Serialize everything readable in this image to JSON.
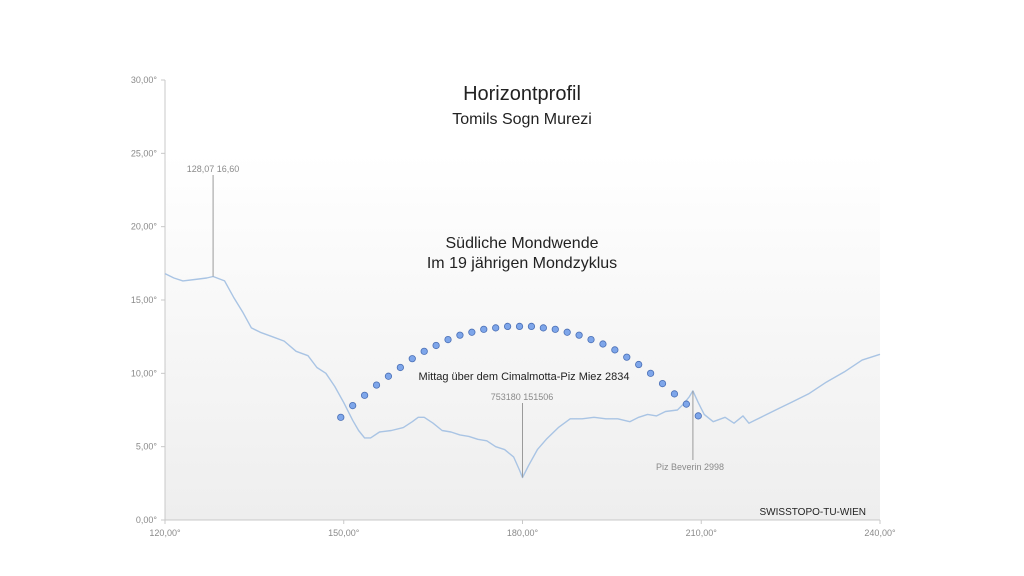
{
  "chart_data": {
    "type": "line",
    "title": "Horizontprofil",
    "subtitle": "Tomils Sogn Murezi",
    "xlim": [
      120,
      240
    ],
    "ylim": [
      0,
      30
    ],
    "x_ticks": [
      120,
      150,
      180,
      210,
      240
    ],
    "x_tick_labels": [
      "120,00°",
      "150,00°",
      "180,00°",
      "210,00°",
      "240,00°"
    ],
    "y_ticks": [
      0,
      5,
      10,
      15,
      20,
      25,
      30
    ],
    "y_tick_labels": [
      "0,00°",
      "5,00°",
      "10,00°",
      "15,00°",
      "20,00°",
      "25,00°",
      "30,00°"
    ],
    "grid": false,
    "colors": {
      "horizon": "#a9c4e4",
      "moon_fill": "#7ea6ea",
      "moon_stroke": "#4a6fb5",
      "leader": "#9a9a9a"
    },
    "series": [
      {
        "kind": "line",
        "x": [
          120,
          121.5,
          123,
          125,
          127,
          128.07,
          130,
          131.5,
          133,
          134.5,
          136,
          138,
          140,
          142,
          144,
          145.5,
          147,
          148.5,
          150,
          151.5,
          152.5,
          153.5,
          154.5,
          156,
          158,
          160,
          161.5,
          162.5,
          163.5,
          165,
          166.5,
          168,
          169.5,
          171,
          172.5,
          174,
          175.5,
          177,
          178.5,
          179.5,
          180,
          181,
          182.5,
          184,
          186,
          188,
          190,
          192,
          194,
          196,
          198,
          199.5,
          201,
          202.5,
          204,
          206,
          207,
          208,
          208.6,
          209.5,
          210.5,
          212,
          214,
          215.5,
          217,
          218,
          219,
          221,
          223,
          225,
          228,
          231,
          234,
          237,
          240
        ],
        "y": [
          16.8,
          16.5,
          16.3,
          16.4,
          16.5,
          16.6,
          16.3,
          15.2,
          14.2,
          13.1,
          12.8,
          12.5,
          12.2,
          11.5,
          11.2,
          10.4,
          10.0,
          9.1,
          8.0,
          6.8,
          6.1,
          5.6,
          5.6,
          6.0,
          6.1,
          6.3,
          6.7,
          7.0,
          7.0,
          6.6,
          6.1,
          6.0,
          5.8,
          5.7,
          5.5,
          5.4,
          5.0,
          4.8,
          4.3,
          3.4,
          2.9,
          3.7,
          4.8,
          5.5,
          6.3,
          6.9,
          6.9,
          7.0,
          6.9,
          6.9,
          6.7,
          7.0,
          7.2,
          7.1,
          7.4,
          7.5,
          7.9,
          8.4,
          8.8,
          8.0,
          7.2,
          6.7,
          7.0,
          6.6,
          7.1,
          6.6,
          6.8,
          7.2,
          7.6,
          8.0,
          8.6,
          9.4,
          10.1,
          10.9,
          11.3
        ]
      },
      {
        "kind": "scatter",
        "x": [
          149.5,
          151.5,
          153.5,
          155.5,
          157.5,
          159.5,
          161.5,
          163.5,
          165.5,
          167.5,
          169.5,
          171.5,
          173.5,
          175.5,
          177.5,
          179.5,
          181.5,
          183.5,
          185.5,
          187.5,
          189.5,
          191.5,
          193.5,
          195.5,
          197.5,
          199.5,
          201.5,
          203.5,
          205.5,
          207.5,
          209.5
        ],
        "y": [
          7.0,
          7.8,
          8.5,
          9.2,
          9.8,
          10.4,
          11.0,
          11.5,
          11.9,
          12.3,
          12.6,
          12.8,
          13.0,
          13.1,
          13.2,
          13.2,
          13.2,
          13.1,
          13.0,
          12.8,
          12.6,
          12.3,
          12.0,
          11.6,
          11.1,
          10.6,
          10.0,
          9.3,
          8.6,
          7.9,
          7.1
        ]
      }
    ],
    "annotations": [
      {
        "text": "Südliche Mondwende",
        "style": "subtitle"
      },
      {
        "text": "Im 19 jährigen Mondzyklus",
        "style": "subtitle"
      },
      {
        "text": "Mittag über dem Cimalmotta-Piz Miez 2834",
        "style": "annot"
      },
      {
        "text": "128,07 16,60",
        "style": "small",
        "point": [
          128.07,
          16.6
        ]
      },
      {
        "text": "753180 151506",
        "style": "small",
        "point": [
          180.0,
          2.9
        ]
      },
      {
        "text": "Piz Beverin 2998",
        "style": "small",
        "point": [
          208.6,
          8.8
        ]
      },
      {
        "text": "SWISSTOPO-TU-WIEN",
        "style": "source"
      }
    ]
  }
}
